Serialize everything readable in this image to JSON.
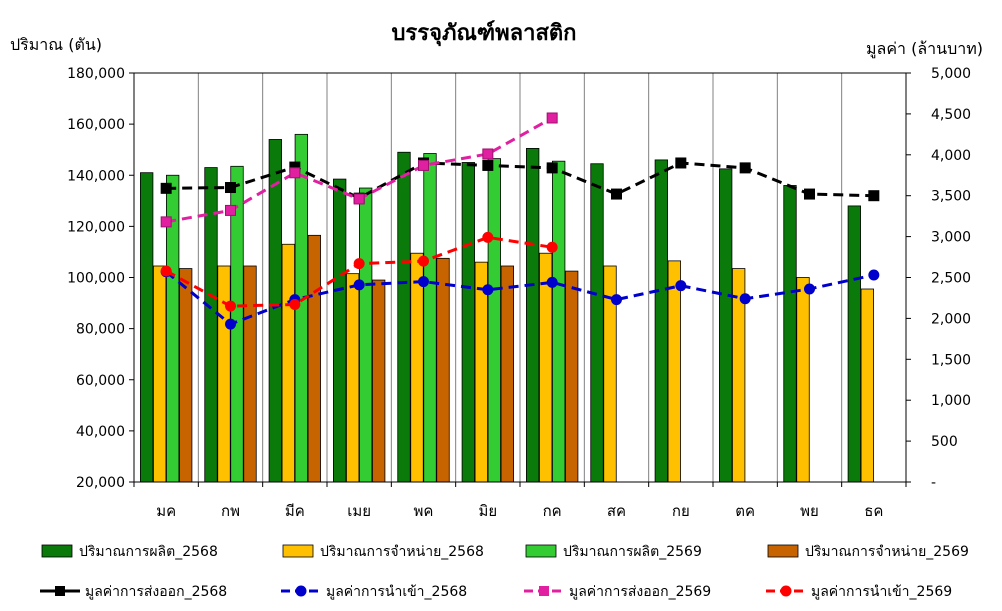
{
  "chart_data": {
    "type": "bar",
    "title": "บรรจุภัณฑ์พลาสติก",
    "ylabel_left": "ปริมาณ (ตัน)",
    "ylabel_right": "มูลค่า (ล้านบาท)",
    "categories": [
      "มค",
      "กพ",
      "มีค",
      "เมย",
      "พค",
      "มิย",
      "กค",
      "สค",
      "กย",
      "ตค",
      "พย",
      "ธค"
    ],
    "ylim_left": [
      20000,
      180000
    ],
    "ylim_right": [
      0,
      5000
    ],
    "yticks_left": [
      "20,000",
      "40,000",
      "60,000",
      "80,000",
      "100,000",
      "120,000",
      "140,000",
      "160,000",
      "180,000"
    ],
    "yticks_right": [
      "-",
      "500",
      "1,000",
      "1,500",
      "2,000",
      "2,500",
      "3,000",
      "3,500",
      "4,000",
      "4,500",
      "5,000"
    ],
    "grid": "vertical",
    "legend_position": "bottom",
    "bar_series": [
      {
        "name": "ปริมาณการผลิต_2568",
        "color": "#0a7a0a",
        "values": [
          141000,
          143000,
          154000,
          138500,
          149000,
          145000,
          150500,
          144500,
          146000,
          142500,
          136000,
          128000
        ]
      },
      {
        "name": "ปริมาณการจำหน่าย_2568",
        "color": "#ffc000",
        "values": [
          104500,
          104500,
          113000,
          101500,
          109500,
          106000,
          109500,
          104500,
          106500,
          103500,
          100000,
          95500
        ]
      },
      {
        "name": "ปริมาณการผลิต_2569",
        "color": "#33cc33",
        "values": [
          140000,
          143500,
          156000,
          135000,
          148500,
          146500,
          145500,
          null,
          null,
          null,
          null,
          null
        ]
      },
      {
        "name": "ปริมาณการจำหน่าย_2569",
        "color": "#c86400",
        "values": [
          103500,
          104500,
          116500,
          99000,
          107500,
          104500,
          102500,
          null,
          null,
          null,
          null,
          null
        ]
      }
    ],
    "line_series": [
      {
        "name": "มูลค่าการส่งออก_2568",
        "color": "#000000",
        "marker": "square",
        "values": [
          3590,
          3600,
          3850,
          3470,
          3900,
          3870,
          3840,
          3520,
          3900,
          3840,
          3520,
          3500
        ]
      },
      {
        "name": "มูลค่าการนำเข้า_2568",
        "color": "#0000cc",
        "marker": "circle",
        "values": [
          2570,
          1930,
          2230,
          2410,
          2450,
          2350,
          2440,
          2230,
          2400,
          2240,
          2360,
          2530
        ]
      },
      {
        "name": "มูลค่าการส่งออก_2569",
        "color": "#e020a0",
        "marker": "square",
        "values": [
          3180,
          3320,
          3780,
          3460,
          3870,
          4010,
          4450,
          null,
          null,
          null,
          null,
          null
        ]
      },
      {
        "name": "มูลค่าการนำเข้า_2569",
        "color": "#ff0000",
        "marker": "circle",
        "values": [
          2580,
          2150,
          2170,
          2670,
          2700,
          2990,
          2870,
          null,
          null,
          null,
          null,
          null
        ]
      }
    ]
  }
}
